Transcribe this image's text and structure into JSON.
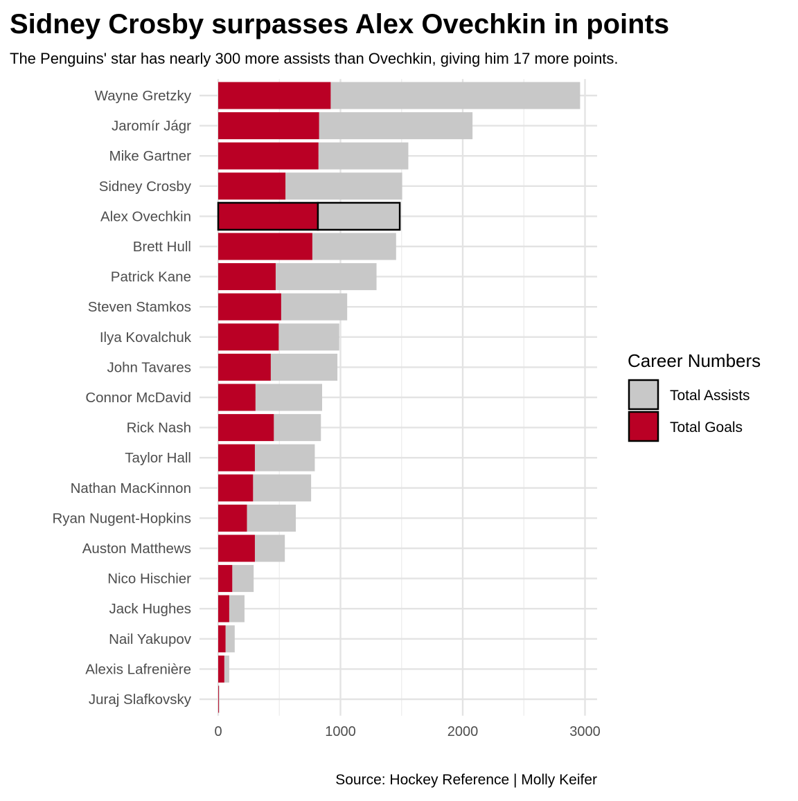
{
  "chart_data": {
    "type": "bar",
    "orientation": "horizontal",
    "stacked": true,
    "title": "Sidney Crosby surpasses Alex Ovechkin in points",
    "subtitle": "The Penguins' star has nearly 300 more assists than Ovechkin, giving him 17 more points.",
    "caption": "Source: Hockey Reference | Molly Keifer",
    "xlabel": "",
    "ylabel": "",
    "xlim": [
      0,
      3100
    ],
    "x_ticks": [
      0,
      1000,
      2000,
      3000
    ],
    "x_tick_labels": [
      "0",
      "1000",
      "2000",
      "3000"
    ],
    "grid": true,
    "highlight_category": "Alex Ovechkin",
    "categories": [
      "Wayne Gretzky",
      "Jaromír Jágr",
      "Mike Gartner",
      "Sidney Crosby",
      "Alex Ovechkin",
      "Brett Hull",
      "Patrick Kane",
      "Steven Stamkos",
      "Ilya Kovalchuk",
      "John Tavares",
      "Connor McDavid",
      "Rick Nash",
      "Taylor Hall",
      "Nathan MacKinnon",
      "Ryan Nugent-Hopkins",
      "Auston Matthews",
      "Nico Hischier",
      "Jack Hughes",
      "Nail Yakupov",
      "Alexis Lafrenière",
      "Juraj Slafkovsky"
    ],
    "series": [
      {
        "name": "Total Goals",
        "color": "#BA0025",
        "values": [
          920,
          825,
          820,
          550,
          815,
          770,
          470,
          515,
          495,
          430,
          305,
          455,
          300,
          285,
          235,
          300,
          115,
          90,
          60,
          50,
          5
        ]
      },
      {
        "name": "Total Assists",
        "color": "#C8C8C8",
        "values": [
          2040,
          1255,
          735,
          955,
          670,
          685,
          825,
          540,
          495,
          545,
          545,
          385,
          490,
          475,
          400,
          245,
          175,
          125,
          75,
          40,
          5
        ]
      }
    ],
    "legend": {
      "title": "Career Numbers",
      "position": "right",
      "entries": [
        "Total Assists",
        "Total Goals"
      ]
    }
  }
}
